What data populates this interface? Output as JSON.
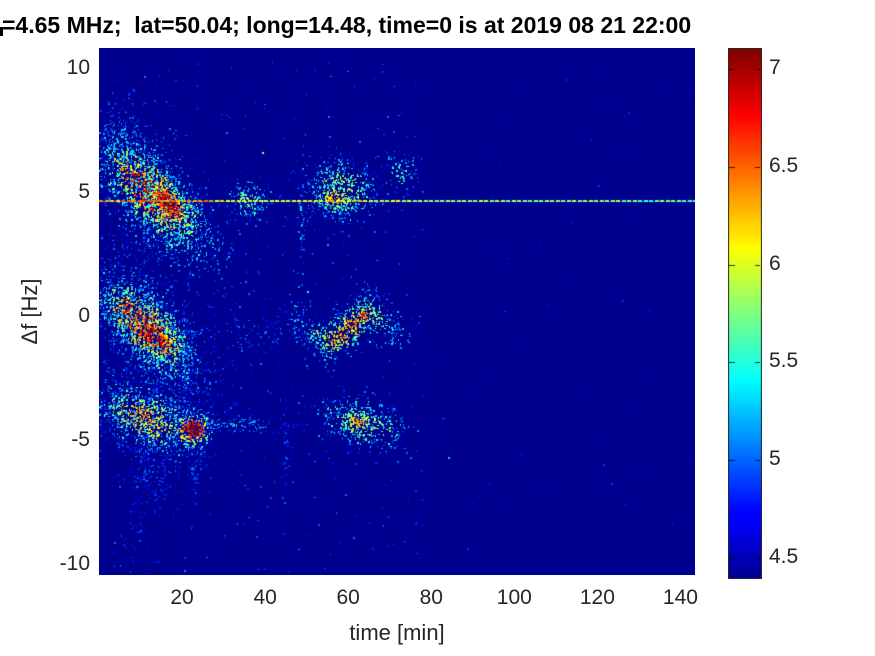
{
  "title": "=4.65 MHz;  lat=50.04; long=14.48, time=0 is at 2019 08 21 22:00",
  "axes": {
    "xlabel": "time [min]",
    "ylabel": "Δf [Hz]",
    "xlim": [
      0,
      143.5
    ],
    "ylim": [
      -10.45,
      10.8
    ],
    "xticks": [
      20,
      40,
      60,
      80,
      100,
      120,
      140
    ],
    "yticks": [
      10,
      5,
      0,
      -5,
      -10
    ]
  },
  "colorbar": {
    "min": 4.4,
    "max": 7.1,
    "ticks": [
      7,
      6.5,
      6,
      5.5,
      5,
      4.5
    ],
    "colormap": "jet"
  },
  "colors": {
    "page_background": "#ffffff",
    "plot_background_jet_low": "#00008f",
    "text": "#262626",
    "title_text": "#000000"
  },
  "chart_data": {
    "type": "heatmap",
    "title": "=4.65 MHz;  lat=50.04; long=14.48, time=0 is at 2019 08 21 22:00",
    "xlabel": "time [min]",
    "ylabel": "Δf [Hz]",
    "x_range_min": [
      0,
      143.5
    ],
    "y_range_hz": [
      -10.45,
      10.8
    ],
    "value_range": [
      4.4,
      7.1
    ],
    "background_value": 4.4,
    "reference_line": {
      "f_hz": 4.65,
      "style": "dashed",
      "t_span_min": [
        0,
        143.5
      ],
      "value_left": 6.25,
      "value_right": 5.65,
      "boost_spans": [
        [
          5,
          27,
          0.25
        ],
        [
          47,
          63,
          0.12
        ]
      ]
    },
    "features": [
      {
        "name": "hop1-main",
        "t": 13,
        "f": 4.9,
        "st": 7.0,
        "sf": 0.85,
        "slope": -0.12,
        "peak": 7.0,
        "base": 4.7,
        "noise": 1.0,
        "n": 2300,
        "stripe": true
      },
      {
        "name": "hop1-halo",
        "t": 13,
        "f": 4.7,
        "st": 9.5,
        "sf": 1.5,
        "slope": -0.13,
        "peak": 5.6,
        "base": 4.72,
        "noise": 0.5,
        "n": 1300,
        "stripe": true
      },
      {
        "name": "hop1-core",
        "t": 16.5,
        "f": 4.55,
        "st": 2.6,
        "sf": 0.4,
        "slope": -0.1,
        "peak": 7.3,
        "base": 5.0,
        "noise": 0.7,
        "n": 320,
        "stripe": false
      },
      {
        "name": "hop1-upper-specks",
        "t": 6,
        "f": 6.9,
        "st": 3.5,
        "sf": 0.8,
        "slope": -0.1,
        "peak": 5.3,
        "base": 4.7,
        "noise": 0.5,
        "n": 160,
        "stripe": false
      },
      {
        "name": "hop1-echo1",
        "t": 36,
        "f": 4.7,
        "st": 3.0,
        "sf": 0.5,
        "slope": 0,
        "peak": 5.7,
        "base": 4.7,
        "noise": 0.6,
        "n": 160,
        "stripe": false
      },
      {
        "name": "hop1-echo2",
        "t": 58,
        "f": 5.1,
        "st": 5.0,
        "sf": 0.75,
        "slope": 0,
        "peak": 6.0,
        "base": 4.7,
        "noise": 0.7,
        "n": 480,
        "stripe": false
      },
      {
        "name": "hop1-echo2-core",
        "t": 56.5,
        "f": 4.75,
        "st": 2.5,
        "sf": 0.3,
        "slope": 0,
        "peak": 6.4,
        "base": 4.9,
        "noise": 0.6,
        "n": 130,
        "stripe": false
      },
      {
        "name": "hop1-echo3",
        "t": 72.5,
        "f": 5.8,
        "st": 2.6,
        "sf": 0.55,
        "slope": 0,
        "peak": 5.6,
        "base": 4.7,
        "noise": 0.5,
        "n": 90,
        "stripe": false
      },
      {
        "name": "hop2-main",
        "t": 11,
        "f": -0.4,
        "st": 6.5,
        "sf": 0.8,
        "slope": -0.11,
        "peak": 6.9,
        "base": 4.7,
        "noise": 1.0,
        "n": 2200,
        "stripe": true
      },
      {
        "name": "hop2-halo",
        "t": 12,
        "f": -0.5,
        "st": 9.0,
        "sf": 1.5,
        "slope": -0.12,
        "peak": 5.4,
        "base": 4.72,
        "noise": 0.5,
        "n": 1200,
        "stripe": true
      },
      {
        "name": "hop2-core",
        "t": 13,
        "f": -0.8,
        "st": 4.0,
        "sf": 0.45,
        "slope": -0.1,
        "peak": 7.05,
        "base": 5.0,
        "noise": 0.7,
        "n": 380,
        "stripe": true
      },
      {
        "name": "hop2-mid-sparse",
        "t": 35,
        "f": -0.7,
        "st": 6.0,
        "sf": 0.8,
        "slope": 0,
        "peak": 5.0,
        "base": 4.6,
        "noise": 0.4,
        "n": 130,
        "stripe": false
      },
      {
        "name": "hop2-echo",
        "t": 60,
        "f": -0.45,
        "st": 7.0,
        "sf": 0.55,
        "slope": 0.015,
        "wave": [
          0.45,
          0.33
        ],
        "peak": 6.3,
        "base": 4.75,
        "noise": 0.8,
        "n": 750,
        "stripe": false
      },
      {
        "name": "hop2-echo-hot",
        "t": 63.5,
        "f": 0.05,
        "st": 0.8,
        "sf": 0.18,
        "slope": 0,
        "peak": 6.9,
        "base": 5.2,
        "noise": 0.5,
        "n": 30,
        "stripe": false
      },
      {
        "name": "hop3-main",
        "t": 11,
        "f": -4.1,
        "st": 6.5,
        "sf": 0.7,
        "slope": -0.05,
        "peak": 6.3,
        "base": 4.7,
        "noise": 0.9,
        "n": 1400,
        "stripe": true
      },
      {
        "name": "hop3-halo",
        "t": 12,
        "f": -4.3,
        "st": 8.5,
        "sf": 1.3,
        "slope": -0.05,
        "peak": 5.1,
        "base": 4.7,
        "noise": 0.5,
        "n": 800,
        "stripe": true
      },
      {
        "name": "hop3-core",
        "t": 22.5,
        "f": -4.55,
        "st": 2.3,
        "sf": 0.33,
        "slope": 0,
        "peak": 7.25,
        "base": 5.2,
        "noise": 0.6,
        "n": 300,
        "stripe": false
      },
      {
        "name": "hop3-bridge",
        "t": 33,
        "f": -4.35,
        "st": 7.0,
        "sf": 0.18,
        "slope": 0,
        "peak": 5.3,
        "base": 4.65,
        "noise": 0.4,
        "n": 150,
        "stripe": false
      },
      {
        "name": "hop3-echo",
        "t": 63,
        "f": -4.3,
        "st": 6.0,
        "sf": 0.55,
        "slope": -0.03,
        "peak": 6.0,
        "base": 4.7,
        "noise": 0.7,
        "n": 420,
        "stripe": false
      },
      {
        "name": "hop3-echo-hot",
        "t": 62,
        "f": -4.25,
        "st": 2.2,
        "sf": 0.28,
        "slope": 0,
        "peak": 6.4,
        "base": 4.9,
        "noise": 0.5,
        "n": 90,
        "stripe": false
      },
      {
        "name": "hop3-under",
        "t": 12,
        "f": -6.3,
        "st": 5.0,
        "sf": 1.0,
        "slope": 0,
        "peak": 4.95,
        "base": 4.55,
        "noise": 0.4,
        "n": 200,
        "stripe": false
      },
      {
        "name": "deep-specks",
        "t": 9,
        "f": -8.6,
        "st": 2.5,
        "sf": 1.2,
        "slope": 0,
        "peak": 4.9,
        "base": 4.55,
        "noise": 0.3,
        "n": 60,
        "stripe": false
      },
      {
        "name": "drip1",
        "t": 21,
        "f": -2.3,
        "st": 0.8,
        "sf": 1.1,
        "slope": 0,
        "peak": 5.1,
        "base": 4.6,
        "noise": 0.4,
        "n": 70,
        "stripe": false
      },
      {
        "name": "drip2",
        "t": 23,
        "f": -5.9,
        "st": 0.8,
        "sf": 1.0,
        "slope": 0,
        "peak": 5.0,
        "base": 4.6,
        "noise": 0.4,
        "n": 55,
        "stripe": false
      },
      {
        "name": "drip3",
        "t": 48.5,
        "f": 3.9,
        "st": 0.5,
        "sf": 0.9,
        "slope": 0,
        "peak": 5.4,
        "base": 4.65,
        "noise": 0.4,
        "n": 45,
        "stripe": false
      },
      {
        "name": "drip4",
        "t": 45,
        "f": -5.3,
        "st": 0.7,
        "sf": 1.1,
        "slope": 0,
        "peak": 4.95,
        "base": 4.6,
        "noise": 0.3,
        "n": 45,
        "stripe": false
      }
    ],
    "scatter_noise": [
      {
        "t_span": [
          0,
          78
        ],
        "f_span": [
          -10.3,
          10.3
        ],
        "n": 700,
        "v_min": 4.45,
        "v_max": 5.1
      },
      {
        "t_span": [
          78,
          143
        ],
        "f_span": [
          -10.3,
          10.3
        ],
        "n": 80,
        "v_min": 4.45,
        "v_max": 4.9
      }
    ],
    "isolated_dots": [
      [
        39.3,
        6.6,
        5.9
      ],
      [
        50.0,
        1.0,
        5.5
      ],
      [
        84.0,
        -5.7,
        5.3
      ],
      [
        47.0,
        -0.15,
        5.4
      ],
      [
        30.5,
        7.4,
        5.1
      ],
      [
        55.0,
        2.9,
        5.2
      ]
    ]
  }
}
